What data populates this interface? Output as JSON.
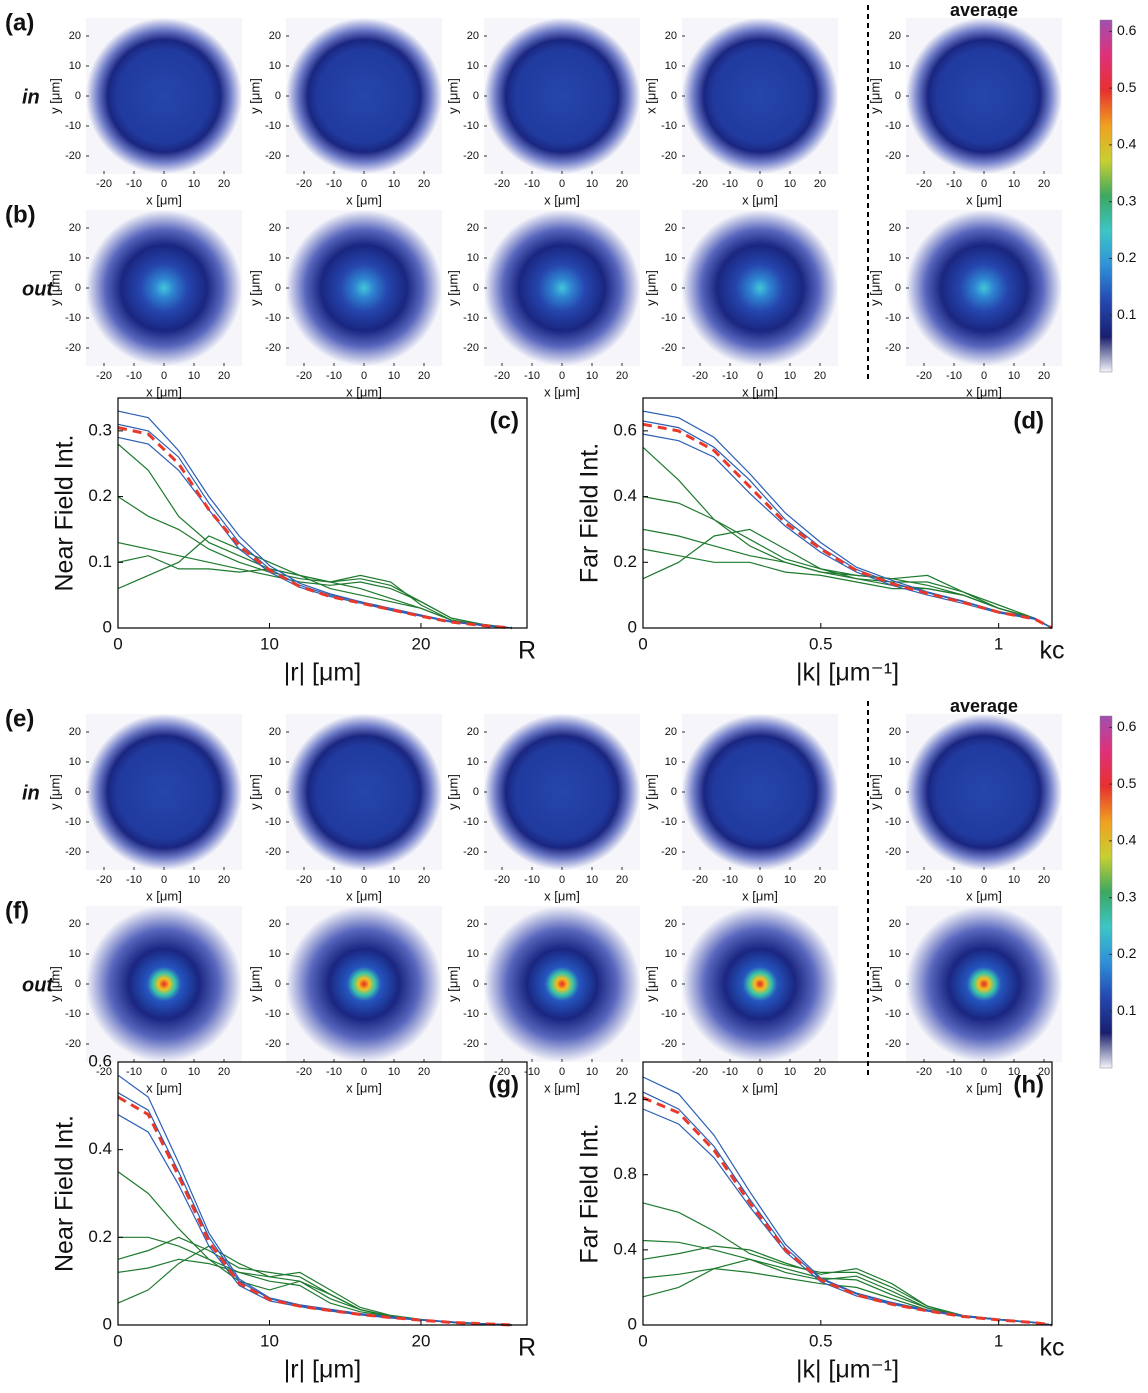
{
  "chart_data": [
    {
      "type": "heatmap",
      "title": "average",
      "rows": [
        {
          "label": "(a)",
          "tag": "in",
          "ylabels": [
            "y [μm]",
            "y [μm]",
            "y [μm]",
            "x [μm]",
            "y [μm]"
          ]
        },
        {
          "label": "(b)",
          "tag": "out",
          "ylabels": [
            "y [μm]",
            "y [μm]",
            "y [μm]",
            "y [μm]",
            "y [μm]"
          ]
        }
      ],
      "xlabel": "x [μm]",
      "xlim": [
        -26,
        26
      ],
      "ylim": [
        -26,
        26
      ],
      "xticks": [
        -20,
        -10,
        0,
        10,
        20
      ],
      "yticks": [
        -20,
        -10,
        0,
        10,
        20
      ],
      "colorbar": {
        "lim": [
          0,
          0.62
        ],
        "ticks": [
          0.1,
          0.2,
          0.3,
          0.4,
          0.5,
          0.6
        ],
        "colormap": [
          "#f4f4fa",
          "#1a1f6e",
          "#2348b0",
          "#2f8fd8",
          "#3cc6c8",
          "#3aa860",
          "#c8d030",
          "#f0a020",
          "#e83030",
          "#e0307a",
          "#a050b0"
        ]
      }
    },
    {
      "type": "line",
      "label": "(c)",
      "ylabel": "Near Field Int.",
      "xlabel": "|r| [μm]",
      "x": [
        0,
        2,
        4,
        6,
        8,
        10,
        12,
        14,
        16,
        18,
        20,
        22,
        24,
        26
      ],
      "xlim": [
        0,
        27
      ],
      "xticks": [
        0,
        10,
        20,
        {
          "value": 27,
          "label": "R"
        }
      ],
      "ylim": [
        0,
        0.35
      ],
      "yticks": [
        0,
        0.1,
        0.2,
        0.3
      ],
      "series": [
        {
          "color": "#1e7a2e",
          "values": [
            0.13,
            0.12,
            0.11,
            0.1,
            0.09,
            0.08,
            0.07,
            0.065,
            0.07,
            0.06,
            0.04,
            0.015,
            0.005,
            0
          ]
        },
        {
          "color": "#1e7a2e",
          "values": [
            0.28,
            0.24,
            0.17,
            0.13,
            0.11,
            0.09,
            0.08,
            0.07,
            0.06,
            0.045,
            0.03,
            0.012,
            0.005,
            0
          ]
        },
        {
          "color": "#1e7a2e",
          "values": [
            0.06,
            0.08,
            0.1,
            0.14,
            0.12,
            0.1,
            0.08,
            0.07,
            0.075,
            0.065,
            0.04,
            0.015,
            0.006,
            0
          ]
        },
        {
          "color": "#1e7a2e",
          "values": [
            0.2,
            0.17,
            0.15,
            0.12,
            0.1,
            0.085,
            0.075,
            0.07,
            0.08,
            0.07,
            0.035,
            0.012,
            0.004,
            0
          ]
        },
        {
          "color": "#1e7a2e",
          "values": [
            0.1,
            0.11,
            0.09,
            0.09,
            0.085,
            0.09,
            0.08,
            0.06,
            0.05,
            0.04,
            0.03,
            0.012,
            0.004,
            0
          ]
        },
        {
          "color": "#2b5fb4",
          "values": [
            0.33,
            0.32,
            0.27,
            0.2,
            0.14,
            0.095,
            0.068,
            0.052,
            0.04,
            0.03,
            0.02,
            0.01,
            0.005,
            0
          ]
        },
        {
          "color": "#2b5fb4",
          "values": [
            0.29,
            0.28,
            0.24,
            0.18,
            0.12,
            0.085,
            0.062,
            0.048,
            0.038,
            0.027,
            0.018,
            0.009,
            0.004,
            0
          ]
        },
        {
          "color": "#2b5fb4",
          "values": [
            0.31,
            0.3,
            0.26,
            0.19,
            0.13,
            0.09,
            0.065,
            0.05,
            0.04,
            0.028,
            0.019,
            0.01,
            0.004,
            0
          ]
        },
        {
          "color": "#e8392a",
          "dash": true,
          "values": [
            0.305,
            0.295,
            0.25,
            0.18,
            0.125,
            0.088,
            0.063,
            0.048,
            0.038,
            0.028,
            0.018,
            0.009,
            0.004,
            0
          ]
        }
      ]
    },
    {
      "type": "line",
      "label": "(d)",
      "ylabel": "Far Field Int.",
      "xlabel": "|k| [μm⁻¹]",
      "x": [
        0,
        0.1,
        0.2,
        0.3,
        0.4,
        0.5,
        0.6,
        0.7,
        0.8,
        0.9,
        1.0,
        1.1,
        1.15
      ],
      "xlim": [
        0,
        1.15
      ],
      "xticks": [
        0,
        0.5,
        1,
        {
          "value": 1.15,
          "label": "kc"
        }
      ],
      "ylim": [
        0,
        0.7
      ],
      "yticks": [
        0,
        0.2,
        0.4,
        0.6
      ],
      "series": [
        {
          "color": "#1e7a2e",
          "values": [
            0.3,
            0.28,
            0.25,
            0.22,
            0.2,
            0.17,
            0.15,
            0.13,
            0.12,
            0.1,
            0.06,
            0.03,
            0
          ]
        },
        {
          "color": "#1e7a2e",
          "values": [
            0.55,
            0.45,
            0.33,
            0.25,
            0.2,
            0.17,
            0.16,
            0.15,
            0.13,
            0.1,
            0.06,
            0.03,
            0
          ]
        },
        {
          "color": "#1e7a2e",
          "values": [
            0.15,
            0.2,
            0.28,
            0.3,
            0.24,
            0.18,
            0.15,
            0.14,
            0.14,
            0.11,
            0.07,
            0.03,
            0
          ]
        },
        {
          "color": "#1e7a2e",
          "values": [
            0.4,
            0.38,
            0.33,
            0.27,
            0.21,
            0.18,
            0.16,
            0.15,
            0.16,
            0.11,
            0.06,
            0.028,
            0
          ]
        },
        {
          "color": "#1e7a2e",
          "values": [
            0.24,
            0.22,
            0.2,
            0.2,
            0.17,
            0.16,
            0.14,
            0.12,
            0.12,
            0.1,
            0.06,
            0.03,
            0
          ]
        },
        {
          "color": "#2b5fb4",
          "values": [
            0.66,
            0.64,
            0.58,
            0.47,
            0.35,
            0.26,
            0.185,
            0.145,
            0.11,
            0.082,
            0.05,
            0.03,
            0
          ]
        },
        {
          "color": "#2b5fb4",
          "values": [
            0.59,
            0.57,
            0.52,
            0.41,
            0.31,
            0.23,
            0.17,
            0.13,
            0.1,
            0.075,
            0.046,
            0.027,
            0
          ]
        },
        {
          "color": "#2b5fb4",
          "values": [
            0.63,
            0.61,
            0.55,
            0.45,
            0.33,
            0.245,
            0.178,
            0.138,
            0.107,
            0.08,
            0.049,
            0.029,
            0
          ]
        },
        {
          "color": "#e8392a",
          "dash": true,
          "values": [
            0.62,
            0.6,
            0.54,
            0.43,
            0.32,
            0.24,
            0.175,
            0.135,
            0.105,
            0.078,
            0.048,
            0.028,
            0
          ]
        }
      ]
    },
    {
      "type": "heatmap",
      "title": "average",
      "rows": [
        {
          "label": "(e)",
          "tag": "in",
          "ylabels": [
            "y [μm]",
            "y [μm]",
            "y [μm]",
            "y [μm]",
            "y [μm]"
          ]
        },
        {
          "label": "(f)",
          "tag": "out",
          "ylabels": [
            "y [μm]",
            "y [μm]",
            "y [μm]",
            "y [μm]",
            "y [μm]"
          ]
        }
      ],
      "xlabel": "x [μm]",
      "xlim": [
        -26,
        26
      ],
      "ylim": [
        -26,
        26
      ],
      "xticks": [
        -20,
        -10,
        0,
        10,
        20
      ],
      "yticks": [
        -20,
        -10,
        0,
        10,
        20
      ],
      "colorbar": {
        "lim": [
          0,
          0.62
        ],
        "ticks": [
          0.1,
          0.2,
          0.3,
          0.4,
          0.5,
          0.6
        ],
        "colormap": [
          "#f4f4fa",
          "#1a1f6e",
          "#2348b0",
          "#2f8fd8",
          "#3cc6c8",
          "#3aa860",
          "#c8d030",
          "#f0a020",
          "#e83030",
          "#e0307a",
          "#a050b0"
        ]
      }
    },
    {
      "type": "line",
      "label": "(g)",
      "ylabel": "Near Field Int.",
      "xlabel": "|r| [μm]",
      "x": [
        0,
        2,
        4,
        6,
        8,
        10,
        12,
        14,
        16,
        18,
        20,
        22,
        24,
        26
      ],
      "xlim": [
        0,
        27
      ],
      "xticks": [
        0,
        10,
        20,
        {
          "value": 27,
          "label": "R"
        }
      ],
      "ylim": [
        0,
        0.6
      ],
      "yticks": [
        0,
        0.2,
        0.4,
        0.6
      ],
      "series": [
        {
          "color": "#1e7a2e",
          "values": [
            0.35,
            0.3,
            0.22,
            0.15,
            0.12,
            0.11,
            0.1,
            0.06,
            0.035,
            0.02,
            0.012,
            0.006,
            0.003,
            0
          ]
        },
        {
          "color": "#1e7a2e",
          "values": [
            0.15,
            0.17,
            0.2,
            0.17,
            0.13,
            0.12,
            0.11,
            0.07,
            0.035,
            0.02,
            0.012,
            0.006,
            0.003,
            0
          ]
        },
        {
          "color": "#1e7a2e",
          "values": [
            0.05,
            0.08,
            0.14,
            0.18,
            0.14,
            0.11,
            0.12,
            0.08,
            0.04,
            0.022,
            0.013,
            0.006,
            0.003,
            0
          ]
        },
        {
          "color": "#1e7a2e",
          "values": [
            0.2,
            0.2,
            0.18,
            0.15,
            0.1,
            0.08,
            0.1,
            0.07,
            0.035,
            0.02,
            0.012,
            0.006,
            0.003,
            0
          ]
        },
        {
          "color": "#1e7a2e",
          "values": [
            0.12,
            0.13,
            0.15,
            0.14,
            0.12,
            0.1,
            0.09,
            0.05,
            0.03,
            0.02,
            0.012,
            0.006,
            0.003,
            0
          ]
        },
        {
          "color": "#2b5fb4",
          "values": [
            0.57,
            0.52,
            0.37,
            0.21,
            0.105,
            0.062,
            0.046,
            0.036,
            0.026,
            0.019,
            0.012,
            0.007,
            0.003,
            0
          ]
        },
        {
          "color": "#2b5fb4",
          "values": [
            0.48,
            0.44,
            0.32,
            0.18,
            0.09,
            0.055,
            0.042,
            0.032,
            0.023,
            0.016,
            0.011,
            0.006,
            0.003,
            0
          ]
        },
        {
          "color": "#2b5fb4",
          "values": [
            0.53,
            0.49,
            0.35,
            0.2,
            0.1,
            0.06,
            0.044,
            0.034,
            0.025,
            0.018,
            0.012,
            0.007,
            0.003,
            0
          ]
        },
        {
          "color": "#e8392a",
          "dash": true,
          "values": [
            0.52,
            0.48,
            0.34,
            0.19,
            0.095,
            0.058,
            0.043,
            0.033,
            0.024,
            0.017,
            0.011,
            0.006,
            0.003,
            0
          ]
        }
      ]
    },
    {
      "type": "line",
      "label": "(h)",
      "ylabel": "Far Field Int.",
      "xlabel": "|k| [μm⁻¹]",
      "x": [
        0,
        0.1,
        0.2,
        0.3,
        0.4,
        0.5,
        0.6,
        0.7,
        0.8,
        0.9,
        1.0,
        1.1,
        1.15
      ],
      "xlim": [
        0,
        1.15
      ],
      "xticks": [
        0,
        0.5,
        1,
        {
          "value": 1.15,
          "label": "kc"
        }
      ],
      "ylim": [
        0,
        1.4
      ],
      "yticks": [
        0,
        0.4,
        0.8,
        1.2
      ],
      "series": [
        {
          "color": "#1e7a2e",
          "values": [
            0.65,
            0.6,
            0.5,
            0.38,
            0.32,
            0.28,
            0.28,
            0.2,
            0.1,
            0.05,
            0.03,
            0.013,
            0
          ]
        },
        {
          "color": "#1e7a2e",
          "values": [
            0.35,
            0.38,
            0.42,
            0.4,
            0.33,
            0.27,
            0.3,
            0.22,
            0.1,
            0.05,
            0.03,
            0.013,
            0
          ]
        },
        {
          "color": "#1e7a2e",
          "values": [
            0.15,
            0.2,
            0.3,
            0.35,
            0.3,
            0.25,
            0.24,
            0.16,
            0.09,
            0.05,
            0.03,
            0.013,
            0
          ]
        },
        {
          "color": "#1e7a2e",
          "values": [
            0.45,
            0.44,
            0.4,
            0.35,
            0.28,
            0.24,
            0.26,
            0.18,
            0.09,
            0.05,
            0.03,
            0.013,
            0
          ]
        },
        {
          "color": "#1e7a2e",
          "values": [
            0.25,
            0.27,
            0.3,
            0.28,
            0.25,
            0.22,
            0.2,
            0.14,
            0.08,
            0.045,
            0.028,
            0.013,
            0
          ]
        },
        {
          "color": "#2b5fb4",
          "values": [
            1.32,
            1.23,
            1.01,
            0.71,
            0.43,
            0.25,
            0.17,
            0.12,
            0.08,
            0.05,
            0.03,
            0.015,
            0
          ]
        },
        {
          "color": "#2b5fb4",
          "values": [
            1.15,
            1.07,
            0.89,
            0.63,
            0.39,
            0.23,
            0.155,
            0.11,
            0.074,
            0.045,
            0.027,
            0.013,
            0
          ]
        },
        {
          "color": "#2b5fb4",
          "values": [
            1.24,
            1.15,
            0.95,
            0.67,
            0.41,
            0.245,
            0.165,
            0.115,
            0.077,
            0.048,
            0.028,
            0.014,
            0
          ]
        },
        {
          "color": "#e8392a",
          "dash": true,
          "values": [
            1.21,
            1.13,
            0.93,
            0.65,
            0.4,
            0.24,
            0.16,
            0.11,
            0.075,
            0.045,
            0.027,
            0.013,
            0
          ]
        }
      ]
    }
  ]
}
